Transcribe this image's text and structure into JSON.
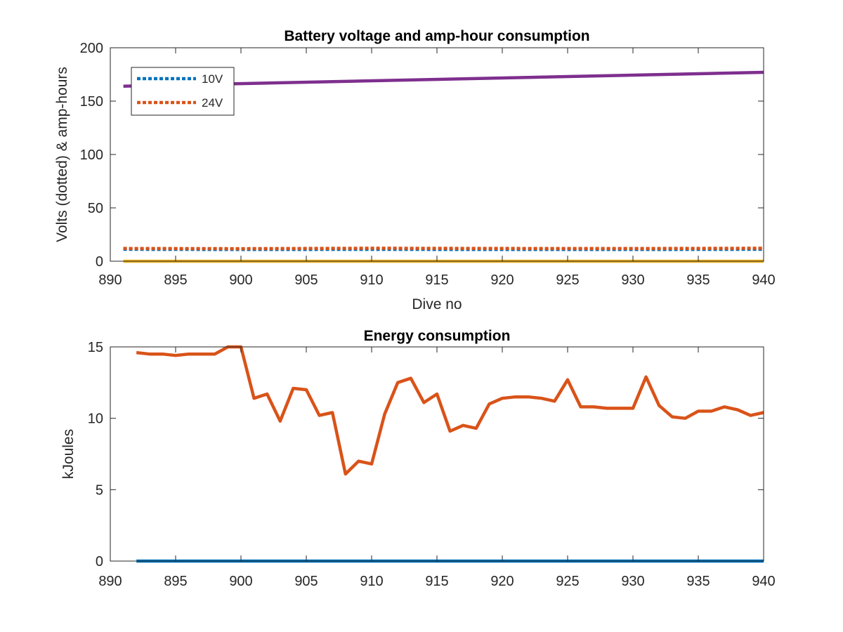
{
  "chart_data": [
    {
      "type": "line",
      "title": "Battery voltage and amp-hour consumption",
      "xlabel": "Dive no",
      "ylabel": "Volts (dotted) & amp-hours",
      "xlim": [
        890,
        940
      ],
      "ylim": [
        0,
        200
      ],
      "xticks": [
        890,
        895,
        900,
        905,
        910,
        915,
        920,
        925,
        930,
        935,
        940
      ],
      "yticks": [
        0,
        50,
        100,
        150,
        200
      ],
      "grid": false,
      "legend_position": "top-left",
      "series": [
        {
          "name": "10V",
          "style": "dotted",
          "color": "#0072BD",
          "x": [
            891,
            900,
            910,
            920,
            930,
            940
          ],
          "y": [
            11.2,
            11.0,
            11.1,
            11.0,
            11.0,
            11.2
          ]
        },
        {
          "name": "24V",
          "style": "dotted",
          "color": "#D95319",
          "x": [
            891,
            900,
            910,
            920,
            930,
            940
          ],
          "y": [
            12.0,
            11.8,
            12.2,
            12.0,
            11.9,
            12.2
          ]
        },
        {
          "style": "solid",
          "color": "#EDB120",
          "x": [
            891,
            940
          ],
          "y": [
            0,
            0
          ]
        },
        {
          "style": "solid",
          "color": "#7E2F8E",
          "x": [
            891,
            940
          ],
          "y": [
            164,
            177
          ]
        }
      ]
    },
    {
      "type": "line",
      "title": "Energy consumption",
      "xlabel": "",
      "ylabel": "kJoules",
      "xlim": [
        890,
        940
      ],
      "ylim": [
        0,
        15
      ],
      "xticks": [
        890,
        895,
        900,
        905,
        910,
        915,
        920,
        925,
        930,
        935,
        940
      ],
      "yticks": [
        0,
        5,
        10,
        15
      ],
      "grid": false,
      "series": [
        {
          "style": "solid",
          "color": "#0072BD",
          "x": [
            892,
            940
          ],
          "y": [
            0,
            0
          ]
        },
        {
          "style": "solid",
          "color": "#D95319",
          "x": [
            892,
            893,
            894,
            895,
            896,
            897,
            898,
            899,
            900,
            901,
            902,
            903,
            904,
            905,
            906,
            907,
            908,
            909,
            910,
            911,
            912,
            913,
            914,
            915,
            916,
            917,
            918,
            919,
            920,
            921,
            922,
            923,
            924,
            925,
            926,
            927,
            928,
            929,
            930,
            931,
            932,
            933,
            934,
            935,
            936,
            937,
            938,
            939,
            940
          ],
          "y": [
            14.6,
            14.5,
            14.5,
            14.4,
            14.5,
            14.5,
            14.5,
            15.0,
            15.0,
            11.4,
            11.7,
            9.8,
            12.1,
            12.0,
            10.2,
            10.4,
            6.1,
            7.0,
            6.8,
            10.3,
            12.5,
            12.8,
            11.1,
            11.7,
            9.1,
            9.5,
            9.3,
            11.0,
            11.4,
            11.5,
            11.5,
            11.4,
            11.2,
            12.7,
            10.8,
            10.8,
            10.7,
            10.7,
            10.7,
            12.9,
            10.9,
            10.1,
            10.0,
            10.5,
            10.5,
            10.8,
            10.6,
            10.2,
            10.4
          ]
        }
      ]
    }
  ]
}
